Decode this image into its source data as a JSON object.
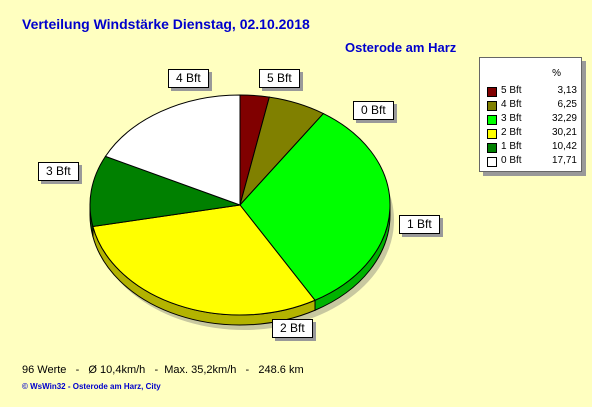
{
  "header": {
    "title": "Verteilung Windstärke  Dienstag, 02.10.2018",
    "location": "Osterode am Harz"
  },
  "chart_data": {
    "type": "pie",
    "legend_header": "%",
    "legend_position": "top-right",
    "slices": [
      {
        "label": "5 Bft",
        "value": 3.13,
        "value_text": "3,13",
        "color": "#800000"
      },
      {
        "label": "4 Bft",
        "value": 6.25,
        "value_text": "6,25",
        "color": "#808000"
      },
      {
        "label": "3 Bft",
        "value": 32.29,
        "value_text": "32,29",
        "color": "#00ff00"
      },
      {
        "label": "2 Bft",
        "value": 30.21,
        "value_text": "30,21",
        "color": "#ffff00"
      },
      {
        "label": "1 Bft",
        "value": 10.42,
        "value_text": "10,42",
        "color": "#008000"
      },
      {
        "label": "0 Bft",
        "value": 17.71,
        "value_text": "17,71",
        "color": "#ffffff"
      }
    ]
  },
  "footer": {
    "stats": "96 Werte   -   Ø 10,4km/h   -  Max. 35,2km/h   -   248.6 km",
    "credit": "© WsWin32  -  Osterode am Harz, City"
  }
}
